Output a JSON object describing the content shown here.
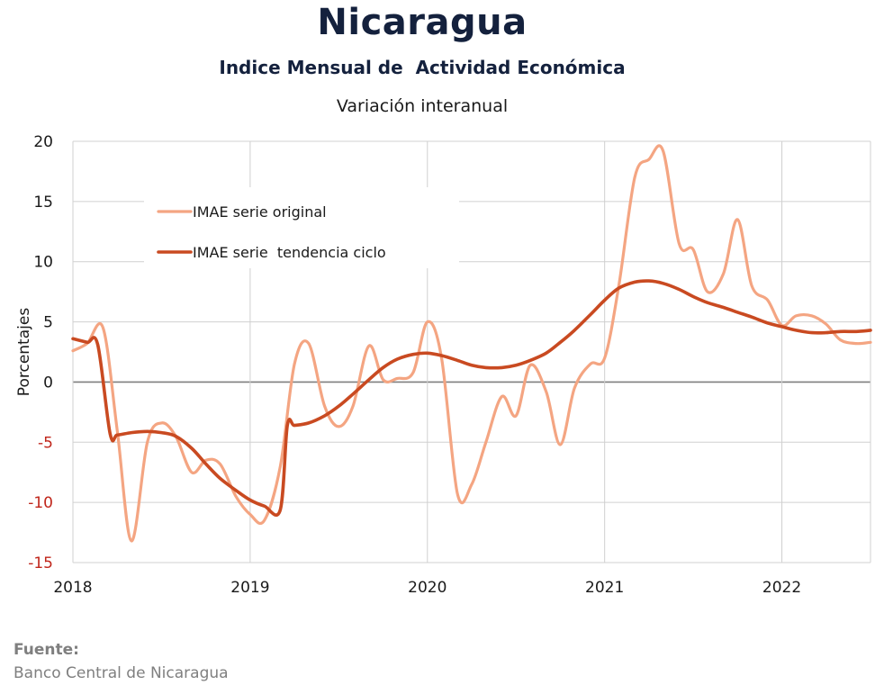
{
  "header": {
    "title": "Nicaragua",
    "subtitle": "Indice Mensual de  Actividad Económica",
    "caption": "Variación interanual"
  },
  "source": {
    "label": "Fuente:",
    "text": "Banco Central de Nicaragua"
  },
  "colors": {
    "original": "#f4a582",
    "trend": "#c94a21",
    "negative_tick": "#c0261b",
    "grid": "#d0d0d0",
    "zero_line": "#7f7f7f"
  },
  "chart_data": {
    "type": "line",
    "xlabel": "",
    "ylabel": "Porcentajes",
    "ylim": [
      -15,
      20
    ],
    "yticks": [
      20,
      15,
      10,
      5,
      0,
      -5,
      -10,
      -15
    ],
    "xticks": [
      "2018",
      "2019",
      "2020",
      "2021",
      "2022"
    ],
    "xlim": [
      2018.0,
      2022.5
    ],
    "grid": true,
    "legend": "top-left",
    "series": [
      {
        "name": "IMAE serie original",
        "x": [
          2018.0,
          2018.08,
          2018.17,
          2018.25,
          2018.33,
          2018.42,
          2018.5,
          2018.58,
          2018.67,
          2018.75,
          2018.83,
          2018.92,
          2019.0,
          2019.08,
          2019.17,
          2019.25,
          2019.33,
          2019.42,
          2019.5,
          2019.58,
          2019.67,
          2019.75,
          2019.83,
          2019.92,
          2020.0,
          2020.08,
          2020.17,
          2020.25,
          2020.33,
          2020.42,
          2020.5,
          2020.58,
          2020.67,
          2020.75,
          2020.83,
          2020.92,
          2021.0,
          2021.08,
          2021.17,
          2021.25,
          2021.33,
          2021.42,
          2021.5,
          2021.58,
          2021.67,
          2021.75,
          2021.83,
          2021.92,
          2022.0,
          2022.08,
          2022.17,
          2022.25,
          2022.33,
          2022.42,
          2022.5
        ],
        "values": [
          2.6,
          3.2,
          4.5,
          -4.0,
          -13.2,
          -5.0,
          -3.4,
          -4.5,
          -7.5,
          -6.5,
          -6.8,
          -9.5,
          -11.0,
          -11.5,
          -7.0,
          1.5,
          3.2,
          -2.0,
          -3.7,
          -2.0,
          3.0,
          0.2,
          0.3,
          0.8,
          5.0,
          2.0,
          -9.3,
          -8.5,
          -5.0,
          -1.2,
          -2.8,
          1.4,
          -0.8,
          -5.2,
          -0.5,
          1.5,
          2.0,
          8.0,
          17.0,
          18.5,
          19.2,
          11.5,
          11.0,
          7.5,
          9.0,
          13.5,
          8.0,
          6.8,
          4.7,
          5.5,
          5.5,
          4.8,
          3.5,
          3.2,
          3.3
        ]
      },
      {
        "name": "IMAE serie  tendencia ciclo",
        "x": [
          2018.0,
          2018.08,
          2018.14,
          2018.21,
          2018.25,
          2018.33,
          2018.42,
          2018.5,
          2018.58,
          2018.67,
          2018.75,
          2018.83,
          2018.92,
          2019.0,
          2019.08,
          2019.17,
          2019.21,
          2019.25,
          2019.33,
          2019.42,
          2019.5,
          2019.58,
          2019.67,
          2019.75,
          2019.83,
          2019.92,
          2020.0,
          2020.08,
          2020.17,
          2020.25,
          2020.33,
          2020.42,
          2020.5,
          2020.58,
          2020.67,
          2020.75,
          2020.83,
          2020.92,
          2021.0,
          2021.08,
          2021.17,
          2021.25,
          2021.33,
          2021.42,
          2021.5,
          2021.58,
          2021.67,
          2021.75,
          2021.83,
          2021.92,
          2022.0,
          2022.08,
          2022.17,
          2022.25,
          2022.33,
          2022.42,
          2022.5
        ],
        "values": [
          3.6,
          3.3,
          3.1,
          -4.3,
          -4.4,
          -4.2,
          -4.1,
          -4.2,
          -4.5,
          -5.5,
          -6.8,
          -8.0,
          -9.0,
          -9.8,
          -10.3,
          -10.6,
          -3.6,
          -3.6,
          -3.4,
          -2.8,
          -2.0,
          -1.0,
          0.2,
          1.2,
          1.9,
          2.3,
          2.4,
          2.2,
          1.8,
          1.4,
          1.2,
          1.2,
          1.4,
          1.8,
          2.4,
          3.3,
          4.3,
          5.6,
          6.8,
          7.8,
          8.3,
          8.4,
          8.2,
          7.7,
          7.1,
          6.6,
          6.2,
          5.8,
          5.4,
          4.9,
          4.6,
          4.3,
          4.1,
          4.1,
          4.2,
          4.2,
          4.3
        ]
      }
    ]
  }
}
